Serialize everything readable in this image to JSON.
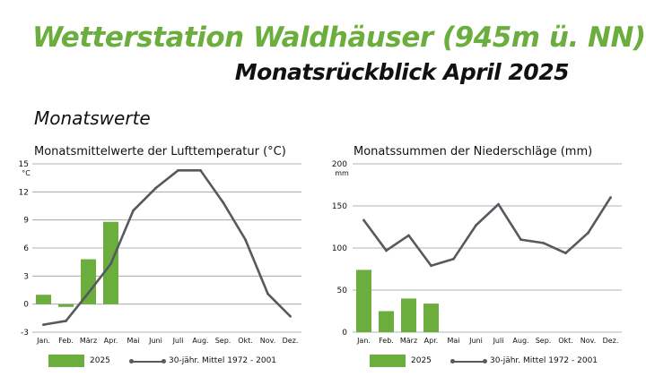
{
  "header": {
    "title": "Wetterstation Waldhäuser (945m ü. NN)",
    "subtitle": "Monatsrückblick April 2025",
    "section": "Monatswerte"
  },
  "legend": {
    "bar_label": "2025",
    "line_label": "30-jähr. Mittel 1972 - 2001"
  },
  "colors": {
    "bar": "#6cae3e",
    "line": "#555a5f",
    "grid": "#9a9a9a"
  },
  "chart_data": [
    {
      "type": "bar",
      "title": "Monatsmittelwerte der Lufttemperatur (°C)",
      "yunit": "°C",
      "ylim": [
        -3,
        15
      ],
      "yticks": [
        -3,
        0,
        3,
        6,
        9,
        12,
        15
      ],
      "grid": true,
      "categories": [
        "Jan.",
        "Feb.",
        "März",
        "Apr.",
        "Mai",
        "Juni",
        "Juli",
        "Aug.",
        "Sep.",
        "Okt.",
        "Nov.",
        "Dez."
      ],
      "series": [
        {
          "name": "2025",
          "type": "bar",
          "values": [
            1.0,
            -0.3,
            4.8,
            8.8,
            null,
            null,
            null,
            null,
            null,
            null,
            null,
            null
          ]
        },
        {
          "name": "30-jähr. Mittel 1972 - 2001",
          "type": "line",
          "values": [
            -2.2,
            -1.8,
            1.2,
            4.3,
            10.0,
            12.4,
            14.3,
            14.3,
            10.9,
            6.9,
            1.1,
            -1.3
          ]
        }
      ]
    },
    {
      "type": "bar",
      "title": "Monatssummen der Niederschläge (mm)",
      "yunit": "mm",
      "ylim": [
        0,
        200
      ],
      "yticks": [
        0,
        50,
        100,
        150,
        200
      ],
      "grid": true,
      "categories": [
        "Jan.",
        "Feb.",
        "März",
        "Apr.",
        "Mai",
        "Juni",
        "Juli",
        "Aug.",
        "Sep.",
        "Okt.",
        "Nov.",
        "Dez."
      ],
      "series": [
        {
          "name": "2025",
          "type": "bar",
          "values": [
            74,
            25,
            40,
            34,
            null,
            null,
            null,
            null,
            null,
            null,
            null,
            null
          ]
        },
        {
          "name": "30-jähr. Mittel 1972 - 2001",
          "type": "line",
          "values": [
            133,
            97,
            115,
            79,
            87,
            127,
            152,
            110,
            106,
            94,
            118,
            160
          ]
        }
      ]
    }
  ]
}
